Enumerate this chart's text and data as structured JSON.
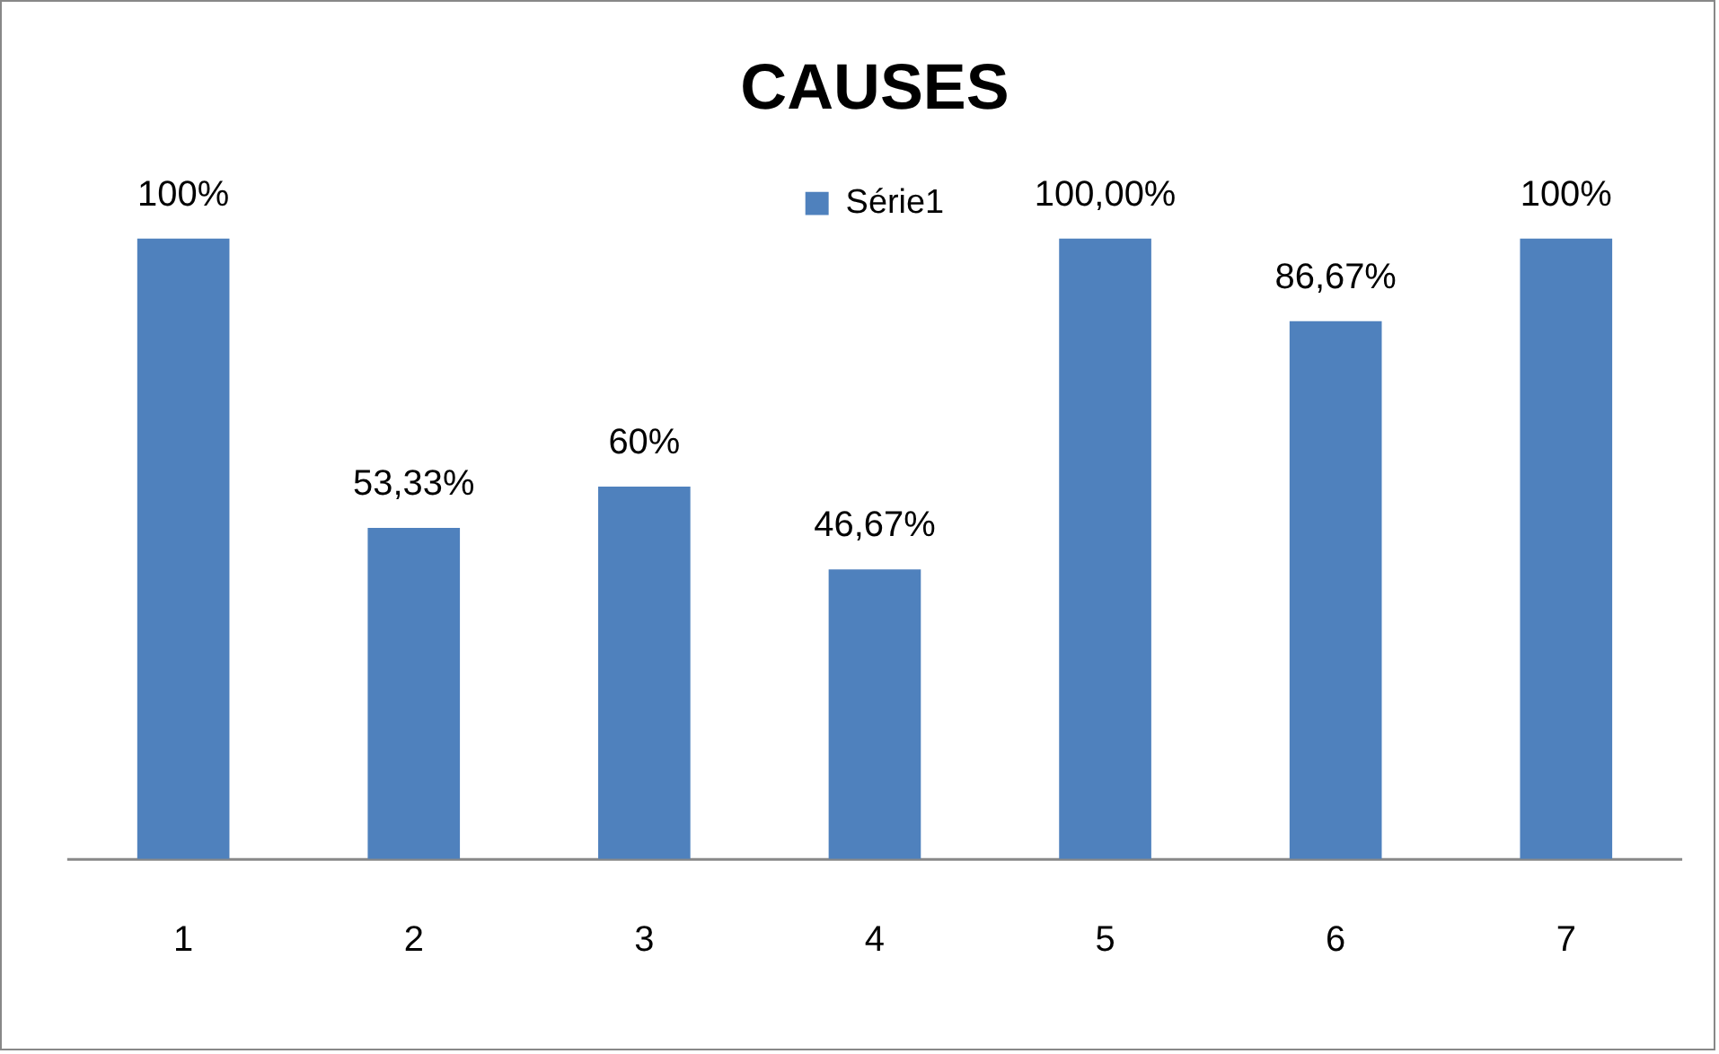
{
  "chart_data": {
    "type": "bar",
    "title": "CAUSES",
    "categories": [
      "1",
      "2",
      "3",
      "4",
      "5",
      "6",
      "7"
    ],
    "series": [
      {
        "name": "Série1",
        "color": "#4f81bd",
        "values": [
          100,
          53.33,
          60,
          46.67,
          100,
          86.67,
          100
        ],
        "value_labels": [
          "100%",
          "53,33%",
          "60%",
          "46,67%",
          "100,00%",
          "86,67%",
          "100%"
        ]
      }
    ],
    "legend": "top"
  }
}
